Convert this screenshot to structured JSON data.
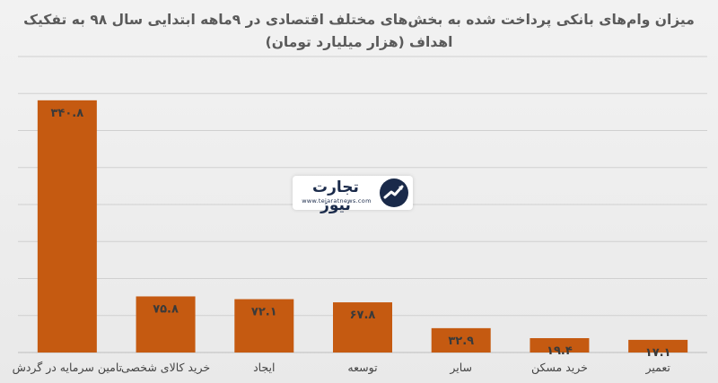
{
  "chart_data": {
    "type": "bar",
    "title_line1": "میزان وام‌های بانکی پرداخت شده به بخش‌های مختلف اقتصادی در ۹ماهه ابتدایی سال ۹۸ به تفکیک",
    "title_line2": "اهداف (هزار میلیارد تومان)",
    "categories": [
      "تامین سرمایه در گردش",
      "خرید کالای شخصی",
      "ایجاد",
      "توسعه",
      "سایر",
      "خرید مسکن",
      "تعمیر"
    ],
    "values": [
      340.8,
      75.8,
      72.1,
      67.8,
      32.9,
      19.4,
      17.1
    ],
    "value_labels": [
      "۳۴۰.۸",
      "۷۵.۸",
      "۷۲.۱",
      "۶۷.۸",
      "۳۲.۹",
      "۱۹.۴",
      "۱۷.۱"
    ],
    "ylim": [
      0,
      400
    ],
    "grid": true,
    "bar_color": "#c55a11",
    "grid_color": "#d0d0d0"
  },
  "watermark": {
    "name": "تجارت نیوز",
    "url": "www.tejaratnews.com"
  }
}
